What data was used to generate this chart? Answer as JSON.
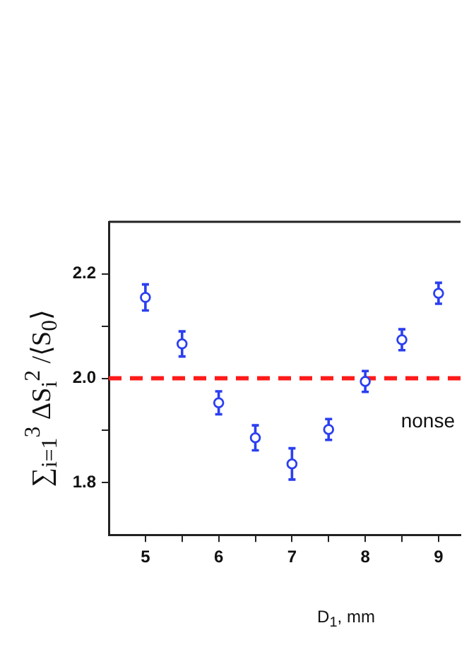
{
  "chart_data": {
    "type": "scatter",
    "xlabel": "D$_{1}$, mm",
    "ylabel": "∑$_{i=1}$$^{3}$ ΔS$_{i}$$^{2}$ /⟨S$_{0}$⟩",
    "x": [
      5,
      5.5,
      6,
      6.5,
      7,
      7.5,
      8,
      8.5,
      9
    ],
    "series": [
      {
        "color": "#2b3ff0",
        "values": [
          2.155,
          2.066,
          1.953,
          1.886,
          1.836,
          1.902,
          1.994,
          2.074,
          2.163
        ],
        "errors": [
          0.025,
          0.024,
          0.022,
          0.024,
          0.03,
          0.02,
          0.02,
          0.02,
          0.02
        ]
      }
    ],
    "marker": "circle",
    "xlim": [
      4.5,
      9.3
    ],
    "xticks": [
      5,
      {
        "value": 5.5,
        "label": null
      },
      6,
      {
        "value": 6.5,
        "label": null
      },
      7,
      {
        "value": 7.5,
        "label": null
      },
      8,
      {
        "value": 8.5,
        "label": null
      },
      9
    ],
    "ylim": [
      1.7,
      2.3
    ],
    "yticks": [
      {
        "value": 1.8,
        "label": "1.8"
      },
      {
        "value": 1.9,
        "label": null
      },
      {
        "value": 2.0,
        "label": "2.0"
      },
      {
        "value": 2.1,
        "label": null
      },
      {
        "value": 2.2,
        "label": "2.2"
      }
    ],
    "ref_lines": [
      {
        "axis": "y",
        "value": 2.0,
        "label": "nonse",
        "color": "#ff1a1a",
        "line_style": "dashed"
      }
    ],
    "grid": false,
    "legend": false
  }
}
